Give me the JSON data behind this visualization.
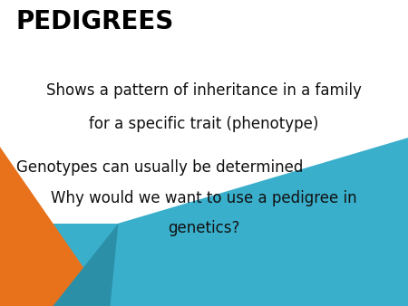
{
  "title": "PEDIGREES",
  "line1": "Shows a pattern of inheritance in a family",
  "line2": "for a specific trait (phenotype)",
  "line3": "Genotypes can usually be determined",
  "line4": "Why would we want to use a pedigree in",
  "line5": "genetics?",
  "bg_color": "#ffffff",
  "title_color": "#000000",
  "text_color": "#111111",
  "title_fontsize": 20,
  "body_fontsize": 12,
  "orange_color": "#E8721C",
  "teal_color": "#3AAFCC",
  "teal_dark_color": "#2B8FA8"
}
